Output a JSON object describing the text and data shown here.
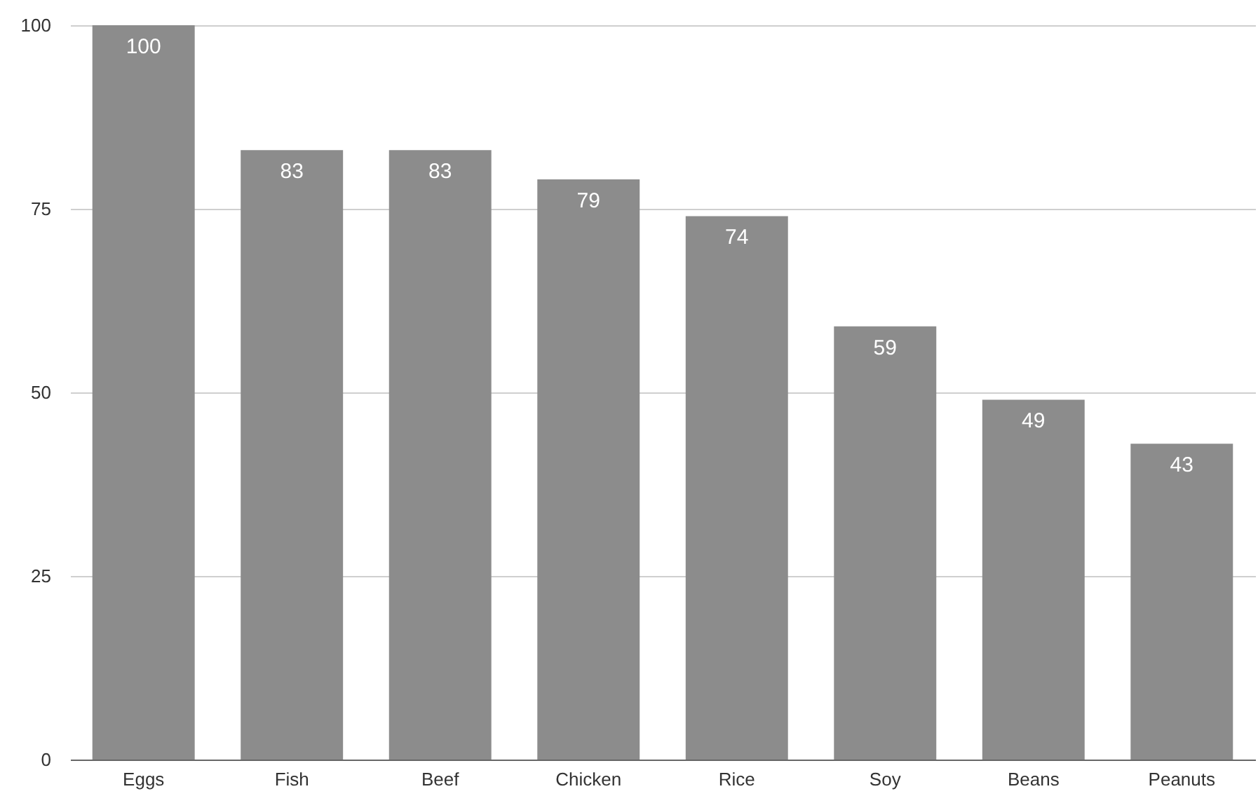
{
  "chart_data": {
    "type": "bar",
    "categories": [
      "Eggs",
      "Fish",
      "Beef",
      "Chicken",
      "Rice",
      "Soy",
      "Beans",
      "Peanuts"
    ],
    "values": [
      100,
      83,
      83,
      79,
      74,
      59,
      49,
      43
    ],
    "color": "#8c8c8c",
    "ylim": [
      0,
      100
    ],
    "yticks": [
      0,
      25,
      50,
      75,
      100
    ],
    "grid": "y",
    "data_labels": true
  }
}
